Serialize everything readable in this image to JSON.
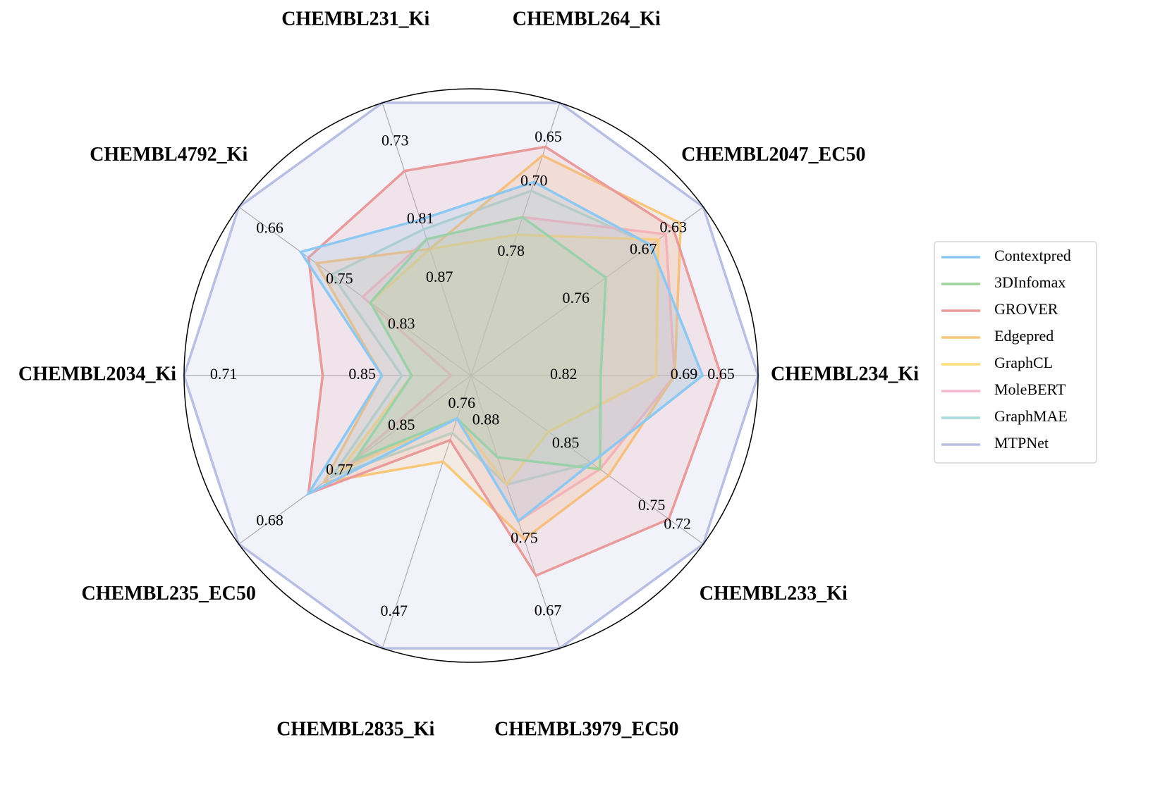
{
  "chart_data": {
    "type": "radar",
    "axes": [
      {
        "label": "CHEMBL234_Ki",
        "lim": [
          0.92,
          0.61
        ],
        "ticks": [
          0.82,
          0.69,
          0.65
        ]
      },
      {
        "label": "CHEMBL2047_EC50",
        "lim": [
          0.9,
          0.59
        ],
        "ticks": [
          0.76,
          0.67,
          0.63
        ]
      },
      {
        "label": "CHEMBL264_Ki",
        "lim": [
          0.92,
          0.61
        ],
        "ticks": [
          0.78,
          {
            "value": 0.7,
            "label": "0.70"
          },
          0.65
        ]
      },
      {
        "label": "CHEMBL231_Ki",
        "lim": [
          0.97,
          0.69
        ],
        "ticks": [
          0.87,
          0.81,
          0.73
        ]
      },
      {
        "label": "CHEMBL4792_Ki",
        "lim": [
          0.92,
          0.62
        ],
        "ticks": [
          0.83,
          0.75,
          0.66
        ]
      },
      {
        "label": "CHEMBL2034_Ki",
        "lim": [
          0.96,
          0.67
        ],
        "ticks": [
          0.85,
          0.71
        ]
      },
      {
        "label": "CHEMBL235_EC50",
        "lim": [
          0.94,
          0.64
        ],
        "ticks": [
          0.85,
          0.77,
          0.68
        ]
      },
      {
        "label": "CHEMBL2835_Ki",
        "lim": [
          0.8,
          0.42
        ],
        "ticks": [
          0.76,
          0.47
        ]
      },
      {
        "label": "CHEMBL3979_EC50",
        "lim": [
          0.93,
          0.63
        ],
        "ticks": [
          0.88,
          0.75,
          0.67
        ]
      },
      {
        "label": "CHEMBL233_Ki",
        "lim": [
          0.96,
          0.69
        ],
        "ticks": [
          0.85,
          0.75,
          0.72
        ]
      }
    ],
    "series": [
      {
        "name": "Contextpred",
        "color": "#8cc8f2",
        "values": [
          0.67,
          0.66,
          0.7,
          0.81,
          0.7,
          0.87,
          0.73,
          0.74,
          0.77,
          0.82
        ]
      },
      {
        "name": "3DInfomax",
        "color": "#9fd39a",
        "values": [
          0.78,
          0.72,
          0.74,
          0.83,
          0.79,
          0.9,
          0.79,
          0.74,
          0.84,
          0.81
        ]
      },
      {
        "name": "GROVER",
        "color": "#e99a9a",
        "values": [
          0.65,
          0.63,
          0.66,
          0.76,
          0.71,
          0.81,
          0.73,
          0.71,
          0.71,
          0.73
        ]
      },
      {
        "name": "Edgepred",
        "color": "#f8c77a",
        "values": [
          0.7,
          0.62,
          0.67,
          0.84,
          0.72,
          0.87,
          0.75,
          0.68,
          0.75,
          0.8
        ]
      },
      {
        "name": "GraphCL",
        "color": "#fcdc7c",
        "values": [
          0.72,
          0.65,
          0.76,
          0.84,
          0.79,
          0.9,
          0.77,
          0.74,
          0.81,
          0.87
        ]
      },
      {
        "name": "MoleBERT",
        "color": "#f5b8cf",
        "values": [
          0.7,
          0.64,
          0.74,
          0.83,
          0.78,
          0.94,
          0.78,
          0.74,
          0.77,
          0.81
        ]
      },
      {
        "name": "GraphMAE",
        "color": "#a8dcd9",
        "values": [
          0.67,
          0.66,
          0.71,
          0.82,
          0.74,
          0.89,
          0.76,
          0.72,
          0.81,
          0.82
        ]
      },
      {
        "name": "MTPNet",
        "color": "#b8bfe3",
        "values": [
          0.61,
          0.59,
          0.61,
          0.69,
          0.62,
          0.67,
          0.64,
          0.42,
          0.63,
          0.69
        ]
      }
    ],
    "legend": "right"
  }
}
